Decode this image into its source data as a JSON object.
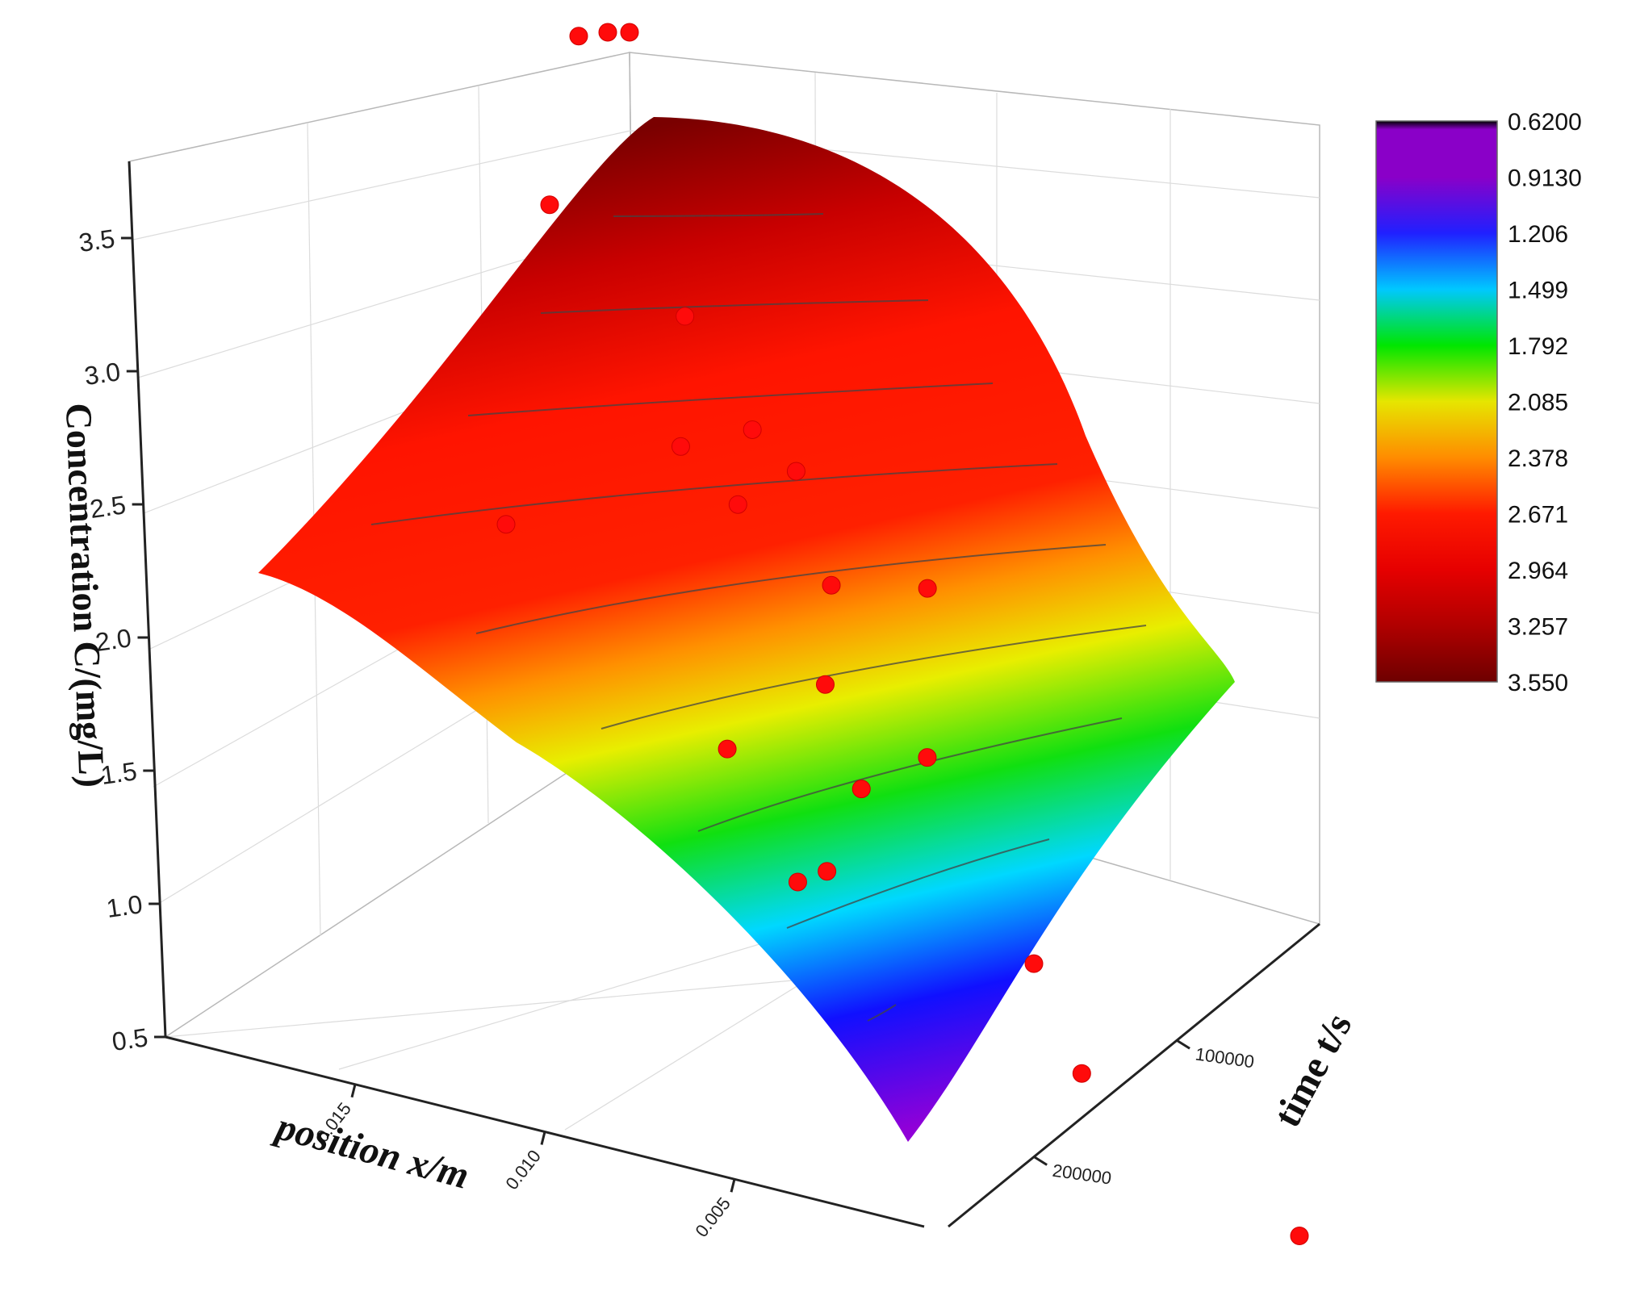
{
  "chart_data": {
    "type": "surface3d",
    "zlabel": "Concentration C/(mg/L)",
    "xlabel": "position x/m",
    "ylabel": "time t/s",
    "z_ticks": [
      "0.5",
      "1.0",
      "1.5",
      "2.0",
      "2.5",
      "3.0",
      "3.5"
    ],
    "zlim": [
      0.5,
      3.75
    ],
    "x_ticks": [
      "0.015",
      "0.010",
      "0.005"
    ],
    "xlim": [
      0.0,
      0.02
    ],
    "t_ticks": [
      "100000",
      "200000"
    ],
    "tlim": [
      0,
      260000
    ],
    "grid": true,
    "colorbar": {
      "placement": "right",
      "labels": [
        "0.6200",
        "0.9130",
        "1.206",
        "1.499",
        "1.792",
        "2.085",
        "2.378",
        "2.671",
        "2.964",
        "3.257",
        "3.550"
      ],
      "colors": [
        "#000000",
        "#8a00c8",
        "#2020ff",
        "#00c8ff",
        "#00e600",
        "#e6e600",
        "#ff8c00",
        "#ff1a00",
        "#e60000",
        "#b00000",
        "#6e0000"
      ]
    },
    "surface_corners": [
      {
        "x": 0.02,
        "t": 0,
        "c": 3.55
      },
      {
        "x": 0.02,
        "t": 260000,
        "c": 2.2
      },
      {
        "x": 0.0,
        "t": 0,
        "c": 2.05
      },
      {
        "x": 0.0,
        "t": 260000,
        "c": 0.62
      }
    ],
    "scatter_points": [
      {
        "x": 0.02,
        "t": 0,
        "c": 3.7
      },
      {
        "x": 0.017,
        "t": 0,
        "c": 3.65
      },
      {
        "x": 0.013,
        "t": 0,
        "c": 3.5
      },
      {
        "x": 0.009,
        "t": 0,
        "c": 3.1
      },
      {
        "x": 0.015,
        "t": 60000,
        "c": 2.5
      },
      {
        "x": 0.01,
        "t": 60000,
        "c": 2.3
      },
      {
        "x": 0.003,
        "t": 0,
        "c": 2.25
      },
      {
        "x": 0.017,
        "t": 110000,
        "c": 2.1
      },
      {
        "x": 0.012,
        "t": 90000,
        "c": 2.05
      },
      {
        "x": 0.018,
        "t": 150000,
        "c": 2.0
      },
      {
        "x": 0.014,
        "t": 150000,
        "c": 1.8
      },
      {
        "x": 0.01,
        "t": 130000,
        "c": 1.6
      },
      {
        "x": 0.006,
        "t": 80000,
        "c": 1.45
      },
      {
        "x": 0.013,
        "t": 200000,
        "c": 1.35
      },
      {
        "x": 0.008,
        "t": 140000,
        "c": 1.35
      },
      {
        "x": 0.006,
        "t": 120000,
        "c": 1.1
      },
      {
        "x": 0.016,
        "t": 230000,
        "c": 1.9
      },
      {
        "x": 0.011,
        "t": 240000,
        "c": 0.8
      },
      {
        "x": 0.004,
        "t": 210000,
        "c": 0.7
      },
      {
        "x": 0.0,
        "t": 260000,
        "c": 0.45
      },
      {
        "x": 0.0,
        "t": 100000,
        "c": 1.35
      }
    ]
  }
}
